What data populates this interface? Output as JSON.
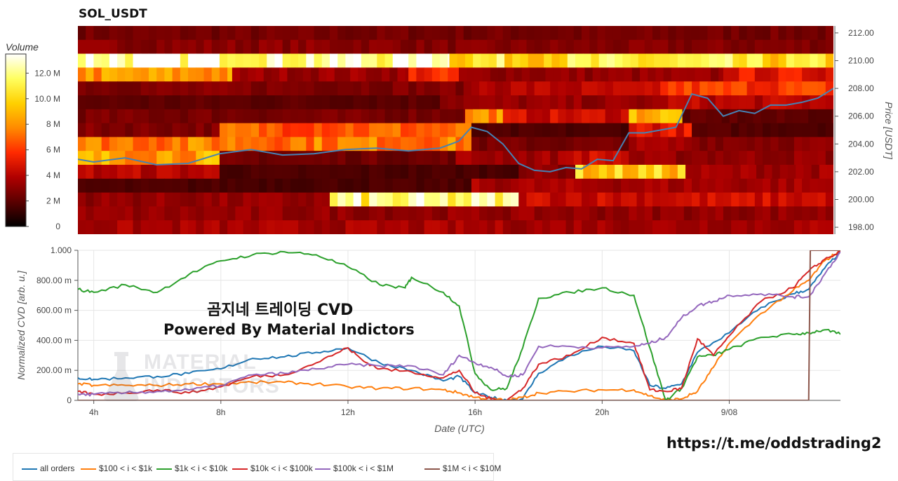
{
  "title": "SOL_USDT",
  "overlay": {
    "line1": "곰지네 트레이딩 CVD",
    "line2": "Powered By Material Indictors"
  },
  "watermark": {
    "line1": "MATERIAL",
    "line2": "INDICATORS"
  },
  "link": "https://t.me/oddstrading2",
  "volume_colorbar": {
    "title": "Volume",
    "ticks": [
      "0",
      "2 M",
      "4 M",
      "6 M",
      "8 M",
      "10.0 M",
      "12.0 M"
    ],
    "values": [
      0,
      2,
      4,
      6,
      8,
      10,
      12
    ],
    "range": [
      0,
      13.5
    ],
    "colors": [
      "#000000",
      "#5a0000",
      "#b00000",
      "#ff2a00",
      "#ff8a00",
      "#ffd000",
      "#ffff60",
      "#ffffff"
    ]
  },
  "price_axis": {
    "label": "Price [USDT]",
    "ticks": [
      "198.00",
      "200.00",
      "202.00",
      "204.00",
      "206.00",
      "208.00",
      "210.00",
      "212.00"
    ],
    "values": [
      198,
      200,
      202,
      204,
      206,
      208,
      210,
      212
    ]
  },
  "cvd_axis": {
    "label": "Normalized CVD [arb. u.]",
    "ticks": [
      "0",
      "200.00 m",
      "400.00 m",
      "600.00 m",
      "800.00 m",
      "1.000"
    ],
    "values": [
      0,
      0.2,
      0.4,
      0.6,
      0.8,
      1.0
    ]
  },
  "x_axis": {
    "label": "Date (UTC)",
    "ticks": [
      "4h",
      "8h",
      "12h",
      "16h",
      "20h",
      "9/08"
    ],
    "values": [
      4,
      8,
      12,
      16,
      20,
      24
    ]
  },
  "colors": {
    "all orders": "#1f77b4",
    "$100 < i < $1k": "#ff7f0e",
    "$1k < i < $10k": "#2ca02c",
    "$10k < i < $100k": "#d62728",
    "$100k < i < $1M": "#9467bd",
    "$1M < i < $10M": "#8c564b",
    "price_line": "#4682b4"
  },
  "chart_data": [
    {
      "type": "heatmap",
      "title": "SOL_USDT",
      "x_range_hours": [
        3.5,
        27.5
      ],
      "price_levels": [
        212,
        211,
        210,
        209,
        208,
        207,
        206,
        205,
        204,
        203,
        202,
        201,
        200,
        199,
        198
      ],
      "volume_unit": "M",
      "segments": [
        {
          "level": 212,
          "spans": [
            [
              3.5,
              27.5,
              2.5
            ]
          ]
        },
        {
          "level": 211,
          "spans": [
            [
              3.5,
              14,
              3.0
            ],
            [
              14,
              27.5,
              2.8
            ]
          ]
        },
        {
          "level": 210,
          "spans": [
            [
              3.5,
              9.5,
              13.0
            ],
            [
              9.5,
              14,
              12.5
            ],
            [
              14,
              15.3,
              14.0
            ],
            [
              15.3,
              24.5,
              10.5
            ],
            [
              24.5,
              27.5,
              10.0
            ]
          ]
        },
        {
          "level": 209,
          "spans": [
            [
              3.5,
              8.4,
              8.0
            ],
            [
              8.4,
              14,
              3.4
            ],
            [
              14,
              15.6,
              5.5
            ],
            [
              15.6,
              24,
              3.2
            ],
            [
              24,
              27.5,
              5.0
            ]
          ]
        },
        {
          "level": 208,
          "spans": [
            [
              3.5,
              16,
              2.8
            ],
            [
              16,
              22,
              4.0
            ],
            [
              22,
              27.5,
              6.0
            ]
          ]
        },
        {
          "level": 207,
          "spans": [
            [
              3.5,
              15,
              2.0
            ],
            [
              15,
              22,
              3.2
            ],
            [
              22,
              27.5,
              4.0
            ]
          ]
        },
        {
          "level": 206,
          "spans": [
            [
              3.5,
              15.8,
              2.6
            ],
            [
              15.8,
              17,
              8.0
            ],
            [
              17,
              21,
              4.5
            ],
            [
              21,
              22.7,
              9.0
            ],
            [
              22.7,
              27.5,
              2.0
            ]
          ]
        },
        {
          "level": 205,
          "spans": [
            [
              3.5,
              8,
              2.8
            ],
            [
              8,
              16,
              6.8
            ],
            [
              16,
              21,
              1.6
            ],
            [
              21,
              23,
              5.0
            ],
            [
              23,
              27.5,
              1.8
            ]
          ]
        },
        {
          "level": 204,
          "spans": [
            [
              3.5,
              16,
              7.5
            ],
            [
              16,
              21,
              2.5
            ],
            [
              21,
              23,
              3.5
            ],
            [
              23,
              27.5,
              3.0
            ]
          ]
        },
        {
          "level": 203,
          "spans": [
            [
              3.5,
              8,
              8.5
            ],
            [
              8,
              15.5,
              2.4
            ],
            [
              15.5,
              19,
              3.5
            ],
            [
              19,
              21,
              4.5
            ],
            [
              21,
              27.5,
              3.2
            ]
          ]
        },
        {
          "level": 202,
          "spans": [
            [
              3.5,
              8,
              4.0
            ],
            [
              8,
              17.5,
              1.6
            ],
            [
              17.5,
              19.3,
              3.0
            ],
            [
              19.3,
              22.8,
              9.5
            ],
            [
              22.8,
              27.5,
              3.5
            ]
          ]
        },
        {
          "level": 201,
          "spans": [
            [
              3.5,
              16,
              1.6
            ],
            [
              16,
              27.5,
              3.6
            ]
          ]
        },
        {
          "level": 200,
          "spans": [
            [
              3.5,
              11.5,
              3.2
            ],
            [
              11.5,
              17.5,
              11.5
            ],
            [
              17.5,
              27.5,
              4.5
            ]
          ]
        },
        {
          "level": 199,
          "spans": [
            [
              3.5,
              27.5,
              3.2
            ]
          ]
        },
        {
          "level": 198,
          "spans": [
            [
              3.5,
              27.5,
              3.6
            ]
          ]
        }
      ],
      "price_series": {
        "name": "",
        "x": [
          3.5,
          4,
          5,
          6,
          7,
          8,
          9,
          10,
          11,
          12,
          13,
          14,
          15,
          15.6,
          16,
          16.5,
          17,
          17.5,
          18,
          18.5,
          19,
          19.5,
          20,
          20.5,
          21,
          21.5,
          22,
          22.5,
          23,
          23.5,
          24,
          24.5,
          25,
          25.5,
          26,
          26.5,
          27,
          27.5
        ],
        "y": [
          202.9,
          202.7,
          203.0,
          202.5,
          202.6,
          203.3,
          203.6,
          203.2,
          203.3,
          203.6,
          203.7,
          203.5,
          203.7,
          204.2,
          205.2,
          204.9,
          204.0,
          202.6,
          202.1,
          202.0,
          202.3,
          202.2,
          202.9,
          202.8,
          204.8,
          204.8,
          205.0,
          205.2,
          207.6,
          207.3,
          206.0,
          206.4,
          206.2,
          206.8,
          206.8,
          207.0,
          207.3,
          208.0
        ]
      }
    },
    {
      "type": "line",
      "title": "",
      "xlabel": "Date (UTC)",
      "ylabel": "Normalized CVD [arb. u.]",
      "x_range_hours": [
        3.5,
        27.5
      ],
      "ylim": [
        0,
        1.0
      ],
      "grid": true,
      "legend": "bottom",
      "series": [
        {
          "name": "all orders",
          "x": [
            3.5,
            4,
            5,
            6,
            7,
            8,
            9,
            10,
            11,
            12,
            13,
            14,
            15,
            15.5,
            16,
            16.5,
            17,
            17.5,
            18,
            19,
            20,
            21,
            21.5,
            22,
            22.5,
            23,
            24,
            25,
            26,
            26.5,
            27,
            27.5
          ],
          "y": [
            0.15,
            0.14,
            0.15,
            0.16,
            0.18,
            0.21,
            0.28,
            0.29,
            0.32,
            0.35,
            0.25,
            0.2,
            0.13,
            0.16,
            0.05,
            0.02,
            0.0,
            0.01,
            0.18,
            0.3,
            0.36,
            0.33,
            0.1,
            0.08,
            0.11,
            0.32,
            0.45,
            0.62,
            0.71,
            0.74,
            0.88,
            0.99
          ]
        },
        {
          "name": "$100 < i < $1k",
          "x": [
            3.5,
            4,
            5,
            6,
            7,
            8,
            9,
            10,
            11,
            12,
            13,
            14,
            15,
            15.5,
            16,
            16.5,
            17,
            17.5,
            18,
            19,
            20,
            21,
            21.5,
            22,
            22.5,
            23,
            23.5,
            24,
            25,
            26,
            26.5,
            27,
            27.5
          ],
          "y": [
            0.11,
            0.1,
            0.1,
            0.1,
            0.11,
            0.11,
            0.12,
            0.12,
            0.11,
            0.09,
            0.08,
            0.08,
            0.07,
            0.05,
            0.02,
            0.01,
            0.0,
            0.02,
            0.05,
            0.06,
            0.07,
            0.07,
            0.03,
            0.0,
            0.01,
            0.06,
            0.22,
            0.38,
            0.58,
            0.73,
            0.8,
            0.93,
            1.0
          ]
        },
        {
          "name": "$1k < i < $10k",
          "x": [
            3.5,
            4,
            5,
            6,
            7,
            8,
            9,
            10,
            11,
            12,
            13,
            13.8,
            14,
            15,
            15.5,
            16,
            16.5,
            17,
            17.5,
            18,
            19,
            20,
            21,
            21.5,
            22,
            22.5,
            23,
            23.5,
            24,
            25,
            26,
            26.5,
            27,
            27.5
          ],
          "y": [
            0.74,
            0.72,
            0.77,
            0.72,
            0.84,
            0.93,
            0.97,
            0.99,
            0.97,
            0.89,
            0.77,
            0.75,
            0.82,
            0.72,
            0.63,
            0.18,
            0.07,
            0.08,
            0.35,
            0.68,
            0.72,
            0.75,
            0.7,
            0.35,
            0.0,
            0.08,
            0.29,
            0.3,
            0.34,
            0.42,
            0.44,
            0.45,
            0.47,
            0.44
          ]
        },
        {
          "name": "$10k < i < $100k",
          "x": [
            3.5,
            4,
            5,
            6,
            7,
            8,
            9,
            10,
            11,
            12,
            12.5,
            13,
            14,
            15,
            15.5,
            16,
            16.5,
            17,
            17.5,
            18,
            19,
            20,
            21,
            21.5,
            22,
            22.5,
            23,
            23.5,
            24,
            25,
            26,
            26.5,
            27,
            27.5
          ],
          "y": [
            0.06,
            0.04,
            0.05,
            0.07,
            0.05,
            0.09,
            0.16,
            0.17,
            0.25,
            0.35,
            0.26,
            0.21,
            0.19,
            0.15,
            0.2,
            0.05,
            0.01,
            0.0,
            0.08,
            0.24,
            0.3,
            0.42,
            0.38,
            0.07,
            0.06,
            0.08,
            0.41,
            0.3,
            0.43,
            0.66,
            0.75,
            0.86,
            0.94,
            0.99
          ]
        },
        {
          "name": "$100k < i < $1M",
          "x": [
            3.5,
            4,
            5,
            6,
            7,
            8,
            9,
            10,
            11,
            12,
            13,
            14,
            15,
            15.5,
            16,
            16.5,
            17,
            17.5,
            18,
            19,
            20,
            21,
            21.5,
            22,
            22.5,
            23,
            23.5,
            24,
            25,
            26,
            26.5,
            27,
            27.5
          ],
          "y": [
            0.04,
            0.04,
            0.05,
            0.06,
            0.07,
            0.1,
            0.17,
            0.18,
            0.21,
            0.24,
            0.23,
            0.23,
            0.17,
            0.3,
            0.25,
            0.22,
            0.16,
            0.17,
            0.36,
            0.36,
            0.35,
            0.36,
            0.38,
            0.42,
            0.55,
            0.63,
            0.66,
            0.7,
            0.71,
            0.69,
            0.69,
            0.84,
            0.99
          ]
        },
        {
          "name": "$1M < i < $10M",
          "x": [
            3.5,
            26.5,
            26.55,
            27.5
          ],
          "y": [
            0.0,
            0.0,
            1.0,
            1.0
          ]
        }
      ]
    }
  ]
}
